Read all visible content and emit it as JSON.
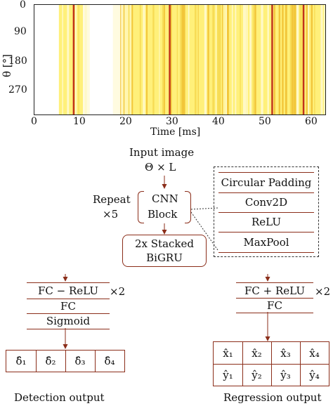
{
  "heatmap": {
    "y_axis_label": "θ [°]",
    "x_axis_label": "Time [ms]",
    "y_ticks": [
      "0",
      "90",
      "180",
      "270"
    ],
    "x_ticks": [
      "0",
      "10",
      "20",
      "30",
      "40",
      "50",
      "60"
    ],
    "y_tick_values": [
      0,
      90,
      180,
      270
    ],
    "x_tick_values": [
      0,
      10,
      20,
      30,
      40,
      50,
      60
    ],
    "x_range": [
      0,
      63
    ],
    "y_range": [
      0,
      360
    ],
    "colormap": "hot (white–yellow–red)",
    "bright_stripes_ms": [
      8.5,
      29.3,
      51.5,
      58.3
    ]
  },
  "pipeline": {
    "input_title": "Input image",
    "input_dims": "Θ × L",
    "repeat_label_line1": "Repeat",
    "repeat_label_line2": "×5",
    "cnn_line1": "CNN",
    "cnn_line2": "Block",
    "cnn_layers": [
      "Circular Padding",
      "Conv2D",
      "ReLU",
      "MaxPool"
    ],
    "gru_line1": "2x Stacked",
    "gru_line2": "BiGRU"
  },
  "detection": {
    "layers": [
      "FC − ReLU",
      "FC",
      "Sigmoid"
    ],
    "multiplier": "×2",
    "outputs": [
      "δ̂₁",
      "δ̂₂",
      "δ̂₃",
      "δ̂₄"
    ],
    "caption": "Detection output"
  },
  "regression": {
    "layers": [
      "FC + ReLU",
      "FC"
    ],
    "multiplier": "×2",
    "outputs_x": [
      "x̂₁",
      "x̂₂",
      "x̂₃",
      "x̂₄"
    ],
    "outputs_y": [
      "ŷ₁",
      "ŷ₂",
      "ŷ₃",
      "ŷ₄"
    ],
    "caption": "Regression output"
  },
  "colors": {
    "box_border": "#8b2e1a",
    "arrow": "#8b2e1a",
    "heat_background": "#fff07a",
    "heat_stripe": "#c0301a"
  }
}
